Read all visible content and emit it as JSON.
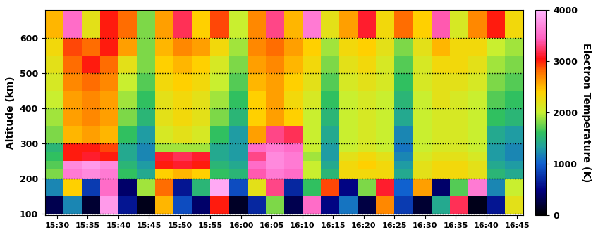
{
  "chart_data": {
    "type": "heatmap",
    "y_label": "Altitude (km)",
    "colorbar_label": "Electron Temperature (K)",
    "x_edges": [
      928,
      931,
      934,
      937,
      940,
      943,
      946,
      949,
      952,
      955,
      958,
      961,
      964,
      967,
      970,
      973,
      976,
      979,
      982,
      985,
      988,
      991,
      994,
      997,
      1000,
      1003,
      1006
    ],
    "y_edges": [
      100,
      150,
      200,
      225,
      250,
      275,
      300,
      350,
      400,
      450,
      500,
      550,
      600,
      680
    ],
    "cells": [
      [
        300,
        1200,
        200,
        3800,
        600,
        100,
        2500,
        900,
        400,
        3000,
        150,
        700,
        1800,
        300,
        3500,
        500,
        1100,
        250,
        2700,
        800,
        200,
        1400,
        3200,
        100,
        600,
        2200
      ],
      [
        1200,
        2400,
        800,
        3500,
        400,
        1900,
        2800,
        600,
        1500,
        3900,
        900,
        2200,
        3300,
        700,
        1600,
        2900,
        500,
        1800,
        3100,
        1000,
        2600,
        400,
        1700,
        3600,
        1200,
        2000
      ],
      [
        1800,
        3600,
        3700,
        3600,
        1600,
        1400,
        2400,
        2500,
        2400,
        1600,
        1500,
        3400,
        3600,
        3500,
        2000,
        1500,
        2300,
        2300,
        2300,
        1400,
        2200,
        2300,
        2300,
        2200,
        1500,
        1400
      ],
      [
        1700,
        3700,
        3800,
        3700,
        1500,
        1300,
        3000,
        3100,
        3000,
        1500,
        1400,
        3500,
        3700,
        3600,
        2000,
        1400,
        2300,
        2400,
        2300,
        1300,
        2200,
        2300,
        2300,
        2200,
        1400,
        1300
      ],
      [
        1600,
        3000,
        3100,
        3000,
        1400,
        1200,
        3100,
        3200,
        3100,
        1400,
        1300,
        3300,
        3700,
        3600,
        1900,
        1300,
        2200,
        2300,
        2200,
        1200,
        2100,
        2200,
        2200,
        2100,
        1300,
        1200
      ],
      [
        1500,
        3000,
        3000,
        2900,
        1400,
        1200,
        1900,
        1900,
        1900,
        1400,
        1300,
        3500,
        3600,
        3500,
        2000,
        1300,
        2000,
        2100,
        2000,
        1100,
        2000,
        2100,
        2100,
        2000,
        1300,
        1200
      ],
      [
        1800,
        2500,
        2600,
        2500,
        1600,
        1300,
        2100,
        2200,
        2100,
        1600,
        1300,
        2600,
        3300,
        3200,
        2000,
        1400,
        2000,
        2100,
        2000,
        1200,
        2000,
        2100,
        2100,
        2000,
        1400,
        1300
      ],
      [
        1900,
        2600,
        2700,
        2600,
        1800,
        1500,
        2200,
        2300,
        2200,
        1800,
        1500,
        2400,
        2600,
        2400,
        2000,
        1500,
        2000,
        2100,
        2000,
        1400,
        2000,
        2100,
        2100,
        2000,
        1600,
        1500
      ],
      [
        2000,
        2600,
        2700,
        2600,
        1900,
        1600,
        2200,
        2300,
        2200,
        1900,
        1600,
        2400,
        2600,
        2300,
        2100,
        1600,
        2000,
        2100,
        2000,
        1500,
        2000,
        2200,
        2100,
        2000,
        1700,
        1600
      ],
      [
        2100,
        2700,
        2800,
        2700,
        2000,
        1700,
        2300,
        2400,
        2300,
        2000,
        1700,
        2500,
        2600,
        2400,
        2200,
        1700,
        2100,
        2200,
        2100,
        1600,
        2100,
        2200,
        2200,
        2100,
        1800,
        1700
      ],
      [
        2200,
        2800,
        3000,
        2800,
        2200,
        1800,
        2400,
        2500,
        2400,
        2100,
        1800,
        2600,
        2700,
        2500,
        2300,
        1800,
        2200,
        2300,
        2100,
        1700,
        2100,
        2300,
        2300,
        2200,
        1900,
        1800
      ],
      [
        2300,
        2900,
        2800,
        3000,
        2600,
        1800,
        2500,
        2700,
        2600,
        2300,
        1900,
        2700,
        2800,
        2600,
        2400,
        1900,
        2300,
        2400,
        2200,
        1800,
        2200,
        2500,
        2300,
        2300,
        2000,
        1900
      ],
      [
        2500,
        3500,
        2200,
        3000,
        2800,
        1800,
        2600,
        3200,
        2400,
        2900,
        2000,
        2700,
        3300,
        2500,
        3600,
        2200,
        2600,
        3100,
        2300,
        2800,
        2400,
        3400,
        2100,
        2700,
        3000,
        2300
      ]
    ],
    "xlim": [
      928,
      1006
    ],
    "ylim": [
      95,
      680
    ],
    "xticks": [
      {
        "value": 930,
        "label": "15:30"
      },
      {
        "value": 935,
        "label": "15:35"
      },
      {
        "value": 940,
        "label": "15:40"
      },
      {
        "value": 945,
        "label": "15:45"
      },
      {
        "value": 950,
        "label": "15:50"
      },
      {
        "value": 955,
        "label": "15:55"
      },
      {
        "value": 960,
        "label": "16:00"
      },
      {
        "value": 965,
        "label": "16:05"
      },
      {
        "value": 970,
        "label": "16:10"
      },
      {
        "value": 975,
        "label": "16:15"
      },
      {
        "value": 980,
        "label": "16:20"
      },
      {
        "value": 985,
        "label": "16:25"
      },
      {
        "value": 990,
        "label": "16:30"
      },
      {
        "value": 995,
        "label": "16:35"
      },
      {
        "value": 1000,
        "label": "16:40"
      },
      {
        "value": 1005,
        "label": "16:45"
      }
    ],
    "yticks": [
      100,
      200,
      300,
      400,
      500,
      600
    ],
    "colorbar_range": [
      0,
      4000
    ],
    "colorbar_ticks": [
      0,
      1000,
      2000,
      3000,
      4000
    ],
    "grid": true
  }
}
